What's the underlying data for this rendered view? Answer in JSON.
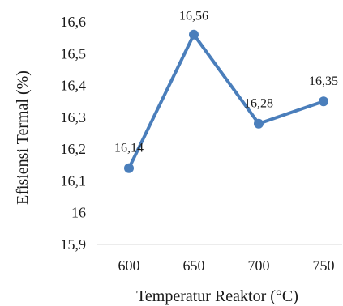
{
  "chart_data": {
    "type": "line",
    "xlabel": "Temperatur Reaktor (°C)",
    "ylabel": "Efisiensi Termal (%)",
    "categories": [
      "600",
      "650",
      "700",
      "750"
    ],
    "series": [
      {
        "values": [
          16.14,
          16.56,
          16.28,
          16.35
        ],
        "data_labels": [
          "16,14",
          "16,56",
          "16,28",
          "16,35"
        ],
        "color": "#4a7ebb"
      }
    ],
    "ylim": [
      15.9,
      16.6
    ],
    "yticks": [
      "15,9",
      "16",
      "16,1",
      "16,2",
      "16,3",
      "16,4",
      "16,5",
      "16,6"
    ],
    "ytick_values": [
      15.9,
      16.0,
      16.1,
      16.2,
      16.3,
      16.4,
      16.5,
      16.6
    ],
    "grid": false,
    "legend": "none"
  }
}
